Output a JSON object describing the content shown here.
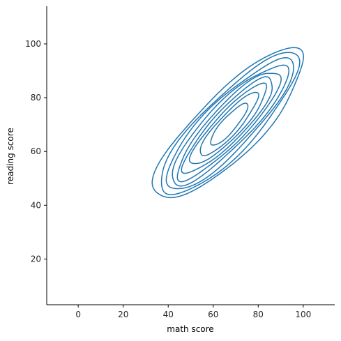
{
  "chart_data": {
    "type": "kde-contour",
    "xlabel": "math score",
    "ylabel": "reading score",
    "xlim": [
      -14,
      114
    ],
    "ylim": [
      3,
      114
    ],
    "xticks": [
      0,
      20,
      40,
      60,
      80,
      100
    ],
    "yticks": [
      20,
      40,
      60,
      80,
      100
    ],
    "grid": false,
    "series_color": "#1f77b4",
    "center": [
      67,
      70
    ],
    "levels": [
      {
        "a": 41.5,
        "b": 12.5,
        "angle_deg": 39
      },
      {
        "a": 39.0,
        "b": 11.0,
        "angle_deg": 40
      },
      {
        "a": 36.0,
        "b": 9.8,
        "angle_deg": 40
      },
      {
        "a": 33.0,
        "b": 8.6,
        "angle_deg": 40
      },
      {
        "a": 29.5,
        "b": 7.4,
        "angle_deg": 41
      },
      {
        "a": 26.0,
        "b": 6.3,
        "angle_deg": 41
      },
      {
        "a": 22.0,
        "b": 5.2,
        "angle_deg": 41
      },
      {
        "a": 17.0,
        "b": 4.1,
        "angle_deg": 42
      },
      {
        "a": 11.0,
        "b": 2.9,
        "angle_deg": 43
      }
    ]
  }
}
